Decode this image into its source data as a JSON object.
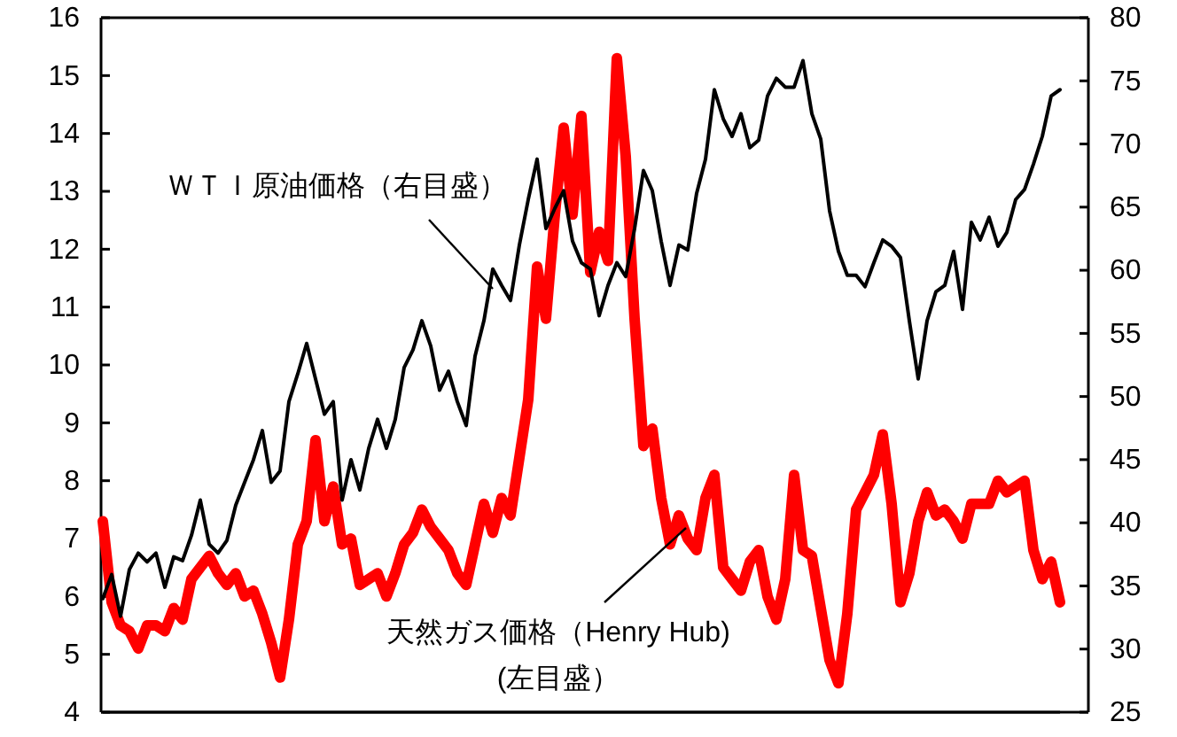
{
  "chart_data": {
    "type": "line",
    "categories": [
      null,
      null,
      null,
      null,
      null,
      null,
      null,
      null,
      null,
      null,
      null,
      null,
      null,
      null,
      null,
      null,
      null,
      null,
      null,
      null,
      null,
      null,
      null,
      null,
      null,
      null,
      null,
      null,
      null,
      null,
      null,
      null,
      null,
      null,
      null,
      null,
      null,
      null,
      null,
      null,
      null,
      null,
      null,
      null,
      null,
      null,
      null,
      null,
      null,
      null,
      null,
      null,
      null,
      null,
      null,
      null,
      null,
      null,
      null,
      null,
      null,
      null,
      null,
      null,
      null,
      null,
      null,
      null,
      null,
      null,
      null,
      null,
      null,
      null,
      null,
      null,
      null,
      null,
      null,
      null,
      null,
      null,
      null,
      null,
      null,
      null,
      null,
      null,
      null,
      null,
      null,
      null,
      null,
      null,
      null,
      null,
      null,
      null,
      null,
      null,
      null,
      null,
      null,
      null,
      null,
      null,
      null,
      null,
      null
    ],
    "series": [
      {
        "name": "天然ガス価格（Henry Hub)\n(左目盛）",
        "color": "#ff0000",
        "values": [
          7.3,
          5.9,
          5.5,
          5.4,
          5.1,
          5.5,
          5.5,
          5.4,
          5.8,
          5.6,
          6.3,
          6.5,
          6.7,
          6.4,
          6.2,
          6.4,
          6.0,
          6.1,
          5.7,
          5.2,
          4.6,
          5.6,
          6.9,
          7.3,
          8.7,
          7.3,
          7.9,
          6.9,
          7.0,
          6.2,
          6.3,
          6.4,
          6.0,
          6.4,
          6.9,
          7.1,
          7.5,
          7.2,
          7.0,
          6.8,
          6.4,
          6.2,
          6.9,
          7.6,
          7.1,
          7.7,
          7.4,
          8.4,
          9.4,
          11.7,
          10.8,
          12.6,
          14.1,
          12.6,
          14.3,
          11.6,
          12.3,
          11.8,
          15.3,
          13.6,
          10.8,
          8.6,
          8.9,
          7.7,
          6.9,
          7.4,
          7.0,
          6.8,
          7.7,
          8.1,
          6.5,
          6.3,
          6.1,
          6.6,
          6.8,
          6.0,
          5.6,
          6.3,
          8.1,
          6.8,
          6.7,
          5.8,
          4.9,
          4.5,
          5.7,
          7.5,
          7.8,
          8.1,
          8.8,
          7.6,
          5.9,
          6.4,
          7.3,
          7.8,
          7.4,
          7.5,
          7.3,
          7.0,
          7.6,
          7.6,
          7.6,
          8.0,
          7.8,
          7.9,
          8.0,
          6.8,
          6.3,
          6.6,
          5.9
        ]
      },
      {
        "name": "ＷＴＩ原油価格（右目盛）",
        "color": "#000000",
        "axis": "y2",
        "values": [
          34.0,
          35.9,
          32.6,
          36.3,
          37.6,
          36.9,
          37.6,
          34.9,
          37.3,
          37.0,
          39.0,
          41.8,
          38.3,
          37.6,
          38.6,
          41.4,
          43.2,
          45.0,
          47.3,
          43.2,
          44.1,
          49.6,
          51.8,
          54.2,
          51.4,
          48.6,
          49.6,
          41.8,
          45.0,
          42.6,
          45.9,
          48.2,
          45.9,
          48.2,
          52.3,
          53.7,
          56.0,
          54.0,
          50.5,
          52.0,
          49.6,
          47.7,
          53.2,
          56.0,
          60.1,
          58.8,
          57.6,
          62.0,
          65.6,
          68.8,
          63.3,
          64.9,
          66.3,
          62.3,
          60.6,
          60.1,
          56.4,
          58.8,
          60.6,
          59.5,
          63.3,
          67.9,
          66.3,
          62.3,
          58.8,
          62.0,
          61.6,
          66.1,
          68.8,
          74.3,
          72.0,
          70.6,
          72.4,
          69.7,
          70.3,
          73.8,
          75.2,
          74.5,
          74.5,
          76.6,
          72.4,
          70.4,
          64.7,
          61.5,
          59.6,
          59.6,
          58.7,
          60.6,
          62.4,
          61.9,
          61.0,
          56.0,
          51.4,
          56.0,
          58.3,
          58.8,
          61.5,
          56.9,
          63.8,
          62.4,
          64.2,
          61.9,
          63.0,
          65.6,
          66.4,
          68.4,
          70.6,
          73.8,
          74.3
        ]
      }
    ],
    "ylim": [
      4,
      16
    ],
    "yticks": [
      4,
      5,
      6,
      7,
      8,
      9,
      10,
      11,
      12,
      13,
      14,
      15,
      16
    ],
    "y2lim": [
      25,
      80
    ],
    "y2ticks": [
      25,
      30,
      35,
      40,
      45,
      50,
      55,
      60,
      65,
      70,
      75,
      80
    ],
    "grid": false,
    "legend": false,
    "line_style": "solid",
    "marker": "none"
  }
}
